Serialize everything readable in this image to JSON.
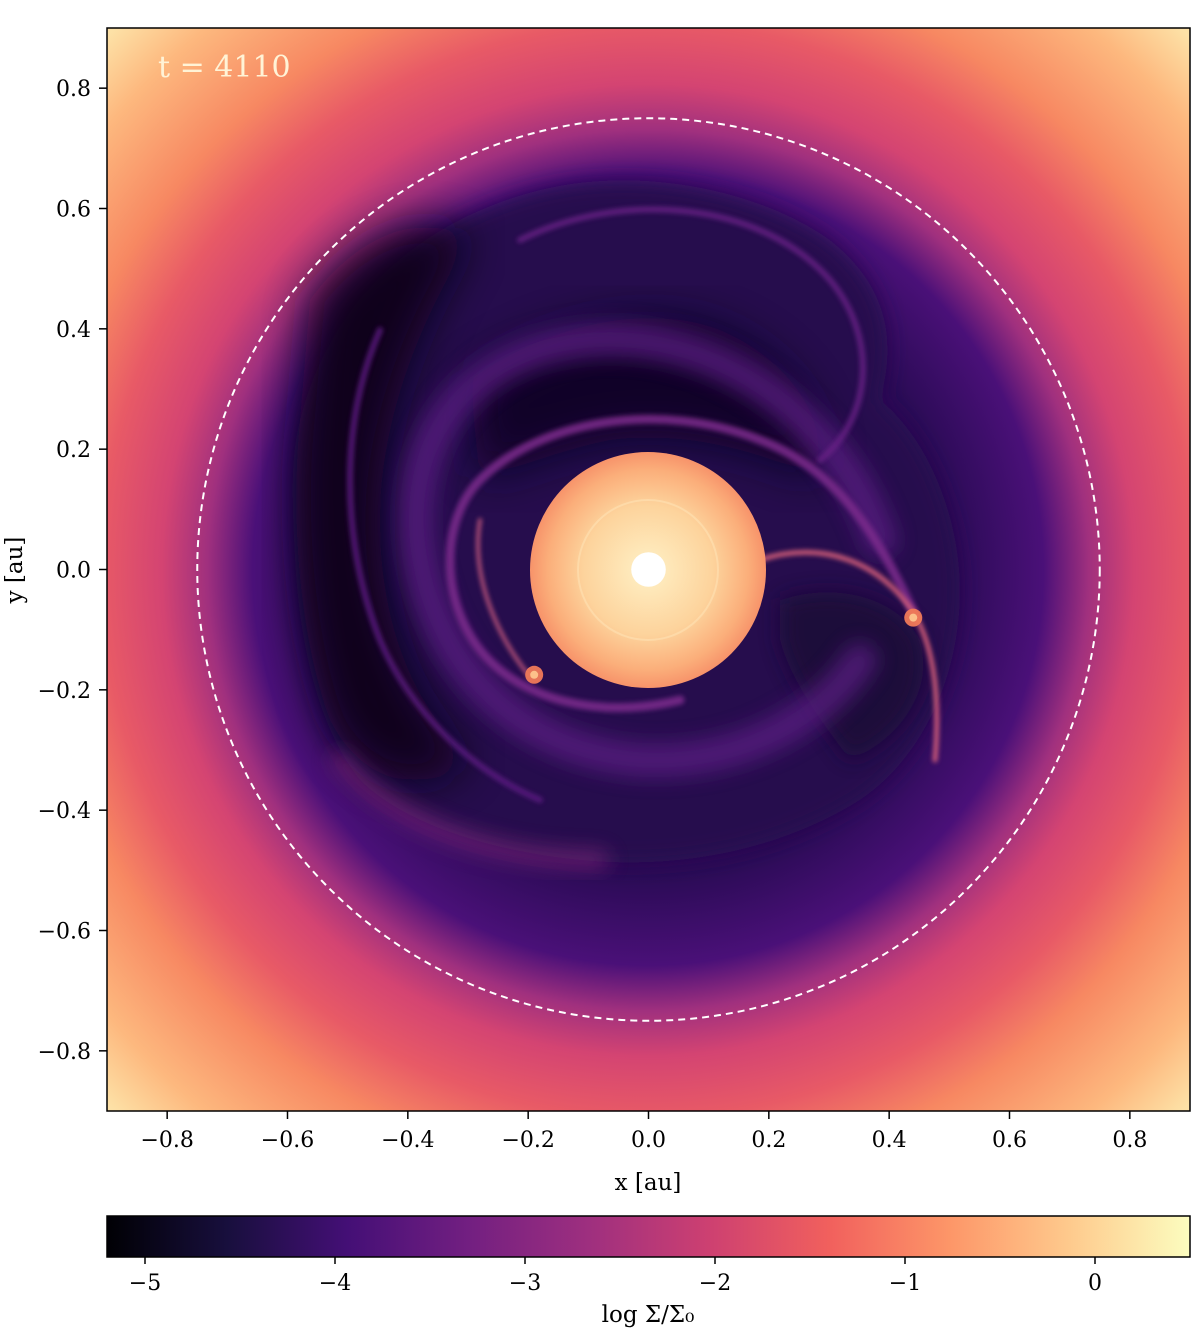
{
  "chart_data": [
    {
      "type": "heatmap",
      "annotation": "t = 4110",
      "xlabel": "x [au]",
      "ylabel": "y [au]",
      "xlim": [
        -0.9,
        0.9
      ],
      "ylim": [
        -0.9,
        0.9
      ],
      "xticks": [
        -0.8,
        -0.6,
        -0.4,
        -0.2,
        0.0,
        0.2,
        0.4,
        0.6,
        0.8
      ],
      "xtick_labels": [
        "−0.8",
        "−0.6",
        "−0.4",
        "−0.2",
        "0.0",
        "0.2",
        "0.4",
        "0.6",
        "0.8"
      ],
      "yticks": [
        0.8,
        0.6,
        0.4,
        0.2,
        0.0,
        -0.2,
        -0.4,
        -0.6,
        -0.8
      ],
      "ytick_labels": [
        "0.8",
        "0.6",
        "0.4",
        "0.2",
        "0.0",
        "−0.2",
        "−0.4",
        "−0.6",
        "−0.8"
      ],
      "colormap": "magma",
      "reference_circle": {
        "style": "dashed",
        "color": "#ffffff",
        "radius_au": 0.75
      },
      "central_object": {
        "color": "#ffffff",
        "radius_au": 0.025
      },
      "bright_spots": [
        {
          "x": 0.44,
          "y": -0.08
        },
        {
          "x": -0.19,
          "y": -0.175
        }
      ],
      "grid": false
    },
    {
      "type": "colorbar",
      "label": "log Σ/Σ₀",
      "range": [
        -5.2,
        0.5
      ],
      "ticks": [
        -5,
        -4,
        -3,
        -2,
        -1,
        0
      ],
      "tick_labels": [
        "−5",
        "−4",
        "−3",
        "−2",
        "−1",
        "0"
      ],
      "colors": [
        "#000004",
        "#180f3d",
        "#440f76",
        "#721f81",
        "#9e2f7f",
        "#cd4071",
        "#f1605d",
        "#fd9668",
        "#feca8d",
        "#fcfdbf"
      ]
    }
  ]
}
